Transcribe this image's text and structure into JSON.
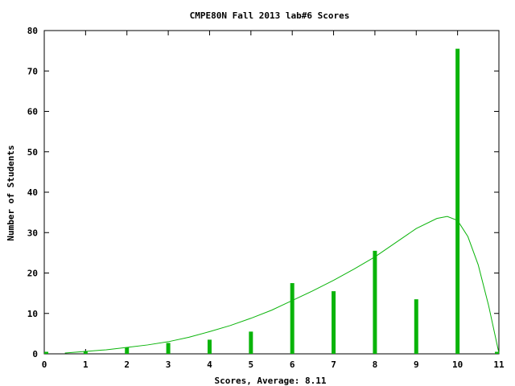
{
  "chart_data": {
    "type": "bar",
    "title": "CMPE80N Fall 2013 lab#6 Scores",
    "xlabel": "Scores, Average: 8.11",
    "ylabel": "Number of Students",
    "xlim": [
      0,
      11
    ],
    "ylim": [
      0,
      80
    ],
    "x_ticks": [
      0,
      1,
      2,
      3,
      4,
      5,
      6,
      7,
      8,
      9,
      10,
      11
    ],
    "y_ticks": [
      0,
      10,
      20,
      30,
      40,
      50,
      60,
      70,
      80
    ],
    "grid": false,
    "legend": "none",
    "series": [
      {
        "type": "bar",
        "color": "#0ab40a",
        "x": [
          0,
          1,
          2,
          3,
          4,
          5,
          6,
          7,
          8,
          9,
          10,
          11
        ],
        "values": [
          0.5,
          0.7,
          1.6,
          2.7,
          3.5,
          5.5,
          17.5,
          15.5,
          25.5,
          13.5,
          75.5,
          0.5
        ]
      },
      {
        "type": "line",
        "color": "#0ab40a",
        "x": [
          0.5,
          1,
          1.5,
          2,
          2.5,
          3,
          3.5,
          4,
          4.5,
          5,
          5.5,
          6,
          6.5,
          7,
          7.5,
          8,
          8.5,
          9,
          9.5,
          9.75,
          10,
          10.25,
          10.5,
          10.75,
          11
        ],
        "values": [
          0.2,
          0.6,
          1.0,
          1.6,
          2.2,
          3.0,
          4.1,
          5.5,
          7.0,
          8.8,
          10.8,
          13.2,
          15.6,
          18.2,
          21.0,
          24.0,
          27.5,
          31.0,
          33.5,
          34.0,
          33.0,
          29.0,
          22.0,
          12.0,
          0.2
        ]
      }
    ]
  }
}
